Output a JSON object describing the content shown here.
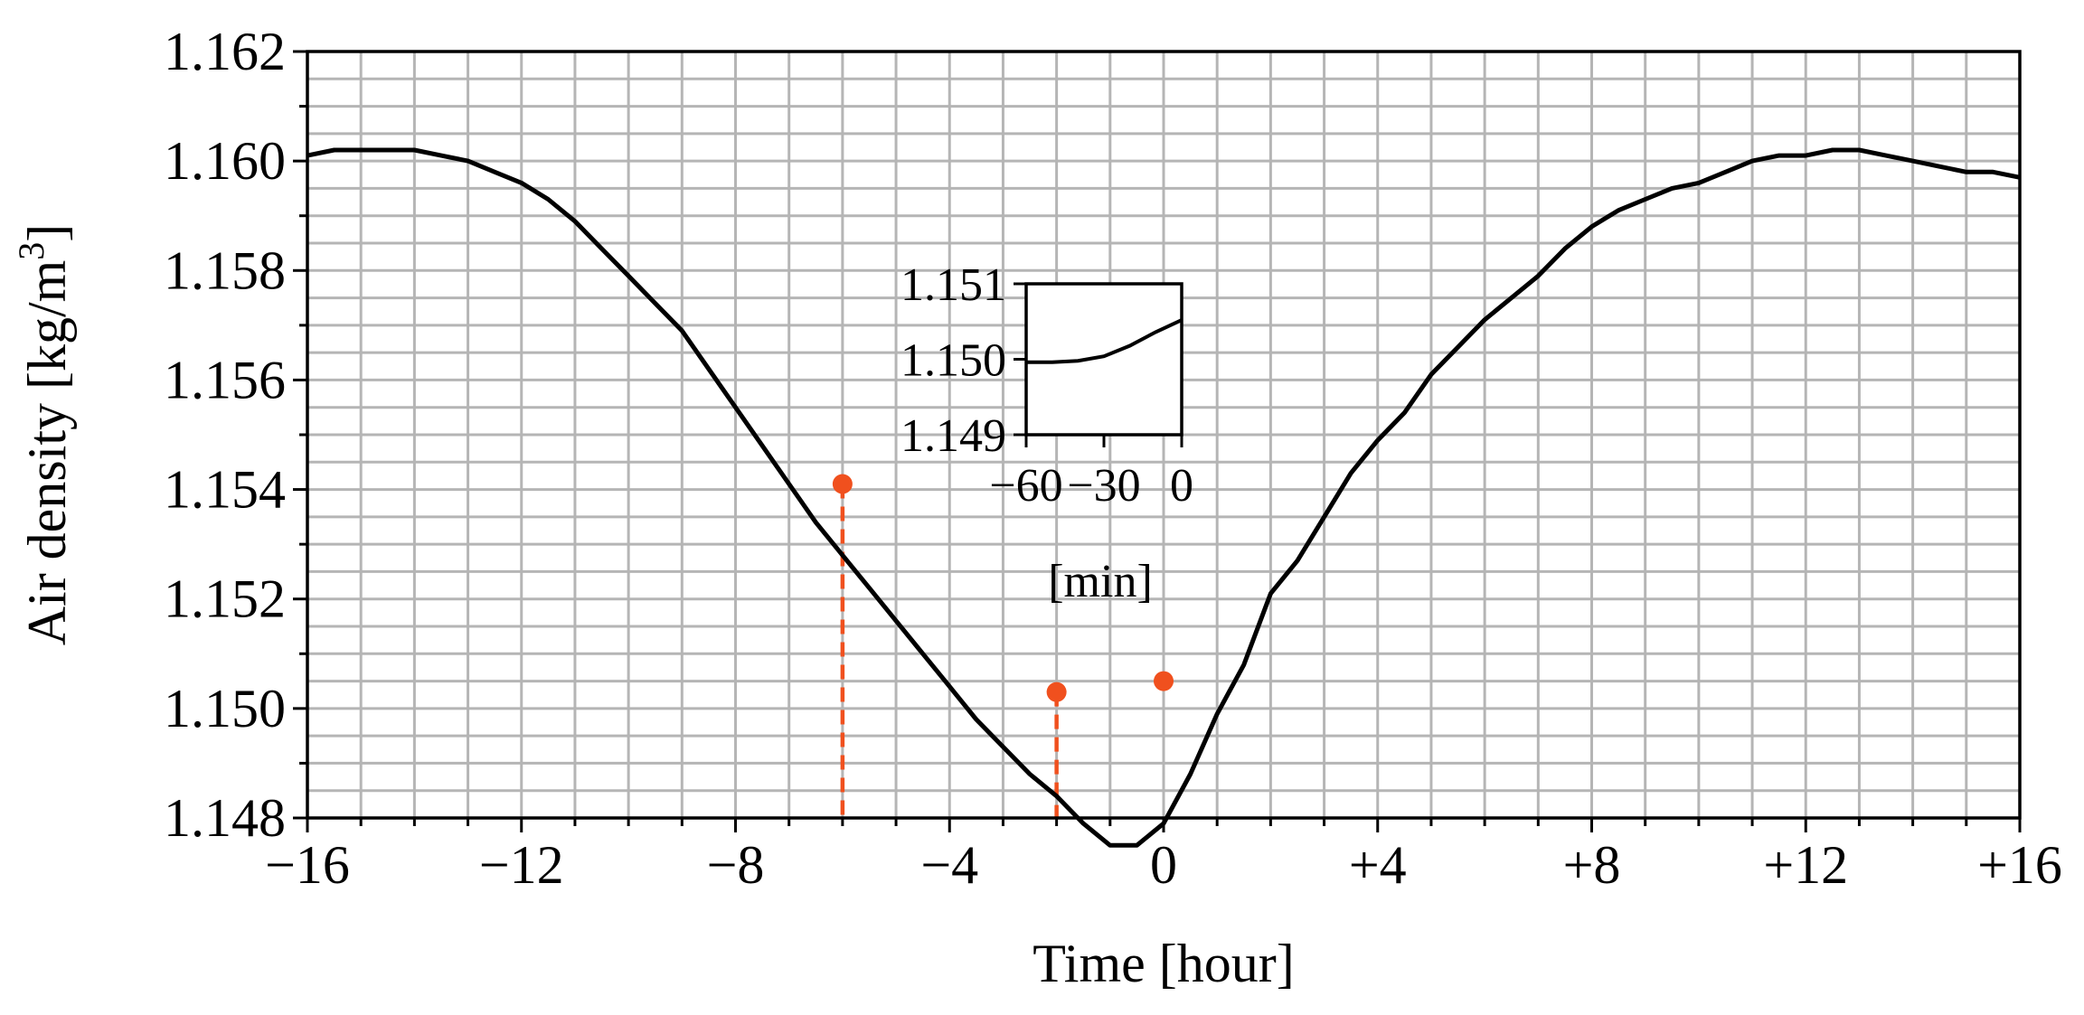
{
  "chart_data": [
    {
      "type": "line",
      "title": "",
      "xlabel": "Time [hour]",
      "ylabel": "Air density [kg/m",
      "ylabel_superscript": "3",
      "ylabel_end": "]",
      "xlim": [
        -16,
        16
      ],
      "ylim": [
        1.148,
        1.162
      ],
      "x_ticks": [
        -16,
        -12,
        -8,
        -4,
        0,
        4,
        8,
        12,
        16
      ],
      "x_tick_labels": [
        "−16",
        "−12",
        "−8",
        "−4",
        "0",
        "+4",
        "+8",
        "+12",
        "+16"
      ],
      "y_ticks": [
        1.148,
        1.15,
        1.152,
        1.154,
        1.156,
        1.158,
        1.16,
        1.162
      ],
      "y_tick_labels": [
        "1.148",
        "1.150",
        "1.152",
        "1.154",
        "1.156",
        "1.158",
        "1.160",
        "1.162"
      ],
      "grid": true,
      "line_color": "#000000",
      "marker_color": "#f0501e",
      "series": [
        {
          "x": [
            -16,
            -15.5,
            -15,
            -14.5,
            -14,
            -13.5,
            -13,
            -12.5,
            -12,
            -11.5,
            -11,
            -10.5,
            -10,
            -9.5,
            -9,
            -8.5,
            -8,
            -7.5,
            -7,
            -6.5,
            -6,
            -5.5,
            -5,
            -4.5,
            -4,
            -3.5,
            -3,
            -2.5,
            -2,
            -1.5,
            -1,
            -0.5,
            0,
            0.5,
            1,
            1.5,
            2,
            2.5,
            3,
            3.5,
            4,
            4.5,
            5,
            5.5,
            6,
            6.5,
            7,
            7.5,
            8,
            8.5,
            9,
            9.5,
            10,
            10.5,
            11,
            11.5,
            12,
            12.5,
            13,
            13.5,
            14,
            14.5,
            15,
            15.5,
            16
          ],
          "y": [
            1.1601,
            1.1602,
            1.1602,
            1.1602,
            1.1602,
            1.1601,
            1.16,
            1.1598,
            1.1596,
            1.1593,
            1.1589,
            1.1584,
            1.1579,
            1.1574,
            1.1569,
            1.1562,
            1.1555,
            1.1548,
            1.1541,
            1.1534,
            1.1528,
            1.1522,
            1.1516,
            1.151,
            1.1504,
            1.1498,
            1.1493,
            1.1488,
            1.1484,
            1.1479,
            1.1475,
            1.1475,
            1.1479,
            1.1488,
            1.1499,
            1.1508,
            1.1521,
            1.1527,
            1.1535,
            1.1543,
            1.1549,
            1.1554,
            1.1561,
            1.1566,
            1.1571,
            1.1575,
            1.1579,
            1.1584,
            1.1588,
            1.1591,
            1.1593,
            1.1595,
            1.1596,
            1.1598,
            1.16,
            1.1601,
            1.1601,
            1.1602,
            1.1602,
            1.1601,
            1.16,
            1.1599,
            1.1598,
            1.1598,
            1.1597
          ]
        }
      ],
      "markers": [
        {
          "x": -6,
          "y": 1.1541
        },
        {
          "x": -2,
          "y": 1.1503
        },
        {
          "x": 0,
          "y": 1.1505
        }
      ],
      "vlines": [
        {
          "x": -6,
          "y_top": 1.1541
        },
        {
          "x": -2,
          "y_top": 1.1503
        }
      ]
    },
    {
      "type": "line",
      "inset": true,
      "xlabel": "[min]",
      "ylabel": "",
      "xlim": [
        -60,
        0
      ],
      "ylim": [
        1.149,
        1.151
      ],
      "x_ticks": [
        -60,
        -30,
        0
      ],
      "x_tick_labels": [
        "−60",
        "−30",
        "0"
      ],
      "y_ticks": [
        1.149,
        1.15,
        1.151
      ],
      "y_tick_labels": [
        "1.149",
        "1.150",
        "1.151"
      ],
      "grid": false,
      "series": [
        {
          "x": [
            -60,
            -50,
            -40,
            -30,
            -20,
            -10,
            0
          ],
          "y": [
            1.14996,
            1.14996,
            1.14998,
            1.15004,
            1.15018,
            1.15036,
            1.15052
          ]
        }
      ]
    }
  ]
}
